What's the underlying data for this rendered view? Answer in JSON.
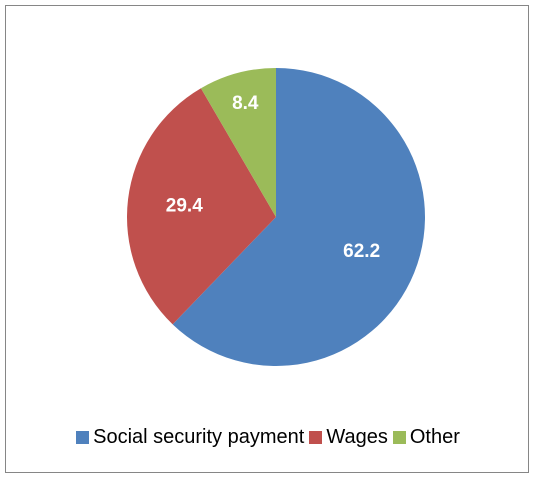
{
  "chart_data": {
    "type": "pie",
    "categories": [
      "Social security payment",
      "Wages",
      "Other"
    ],
    "values": [
      62.2,
      29.4,
      8.4
    ],
    "colors": [
      "#4F81BD",
      "#C0504D",
      "#9BBB59"
    ],
    "data_labels": [
      "62.2",
      "29.4",
      "8.4"
    ],
    "start_angle": "12 o'clock, clockwise",
    "legend": {
      "placement": "bottom",
      "entries": [
        "Social security payment",
        "Wages",
        "Other"
      ]
    }
  }
}
